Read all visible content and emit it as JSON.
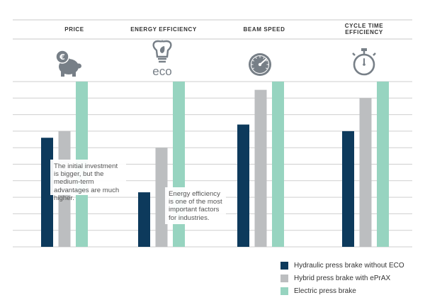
{
  "chart_data": {
    "type": "bar",
    "categories": [
      "PRICE",
      "ENERGY EFFICIENCY",
      "BEAM SPEED",
      "CYCLE TIME EFFICIENCY"
    ],
    "category_icons": [
      "piggy-bank-euro-icon",
      "eco-bulb-icon",
      "speedometer-icon",
      "stopwatch-icon"
    ],
    "eco_text": "eco",
    "series": [
      {
        "name": "Hydraulic press brake without ECO",
        "color": "#0d3a5c",
        "values": [
          6.6,
          3.3,
          7.4,
          7.0
        ]
      },
      {
        "name": "Hybrid press brake with ePrAX",
        "color": "#bcbec0",
        "values": [
          7.0,
          6.0,
          9.5,
          9.0
        ]
      },
      {
        "name": "Electric press brake",
        "color": "#97d4c0",
        "values": [
          10,
          10,
          10,
          10
        ]
      }
    ],
    "ylim": [
      0,
      10
    ],
    "grid": true,
    "legend_position": "bottom-right",
    "icon_color": "#777f87",
    "annotations": [
      {
        "text": "The initial investment is bigger, but the medium-term advantages are much higher."
      },
      {
        "text": "Energy efficiency is one of the most important factors for industries."
      }
    ]
  }
}
